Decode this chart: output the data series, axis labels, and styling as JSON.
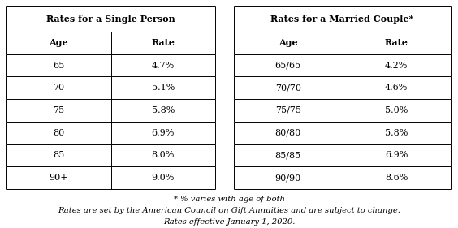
{
  "single_title": "Rates for a Single Person",
  "couple_title": "Rates for a Married Couple*",
  "col_headers": [
    "Age",
    "Rate"
  ],
  "single_data": [
    [
      "65",
      "4.7%"
    ],
    [
      "70",
      "5.1%"
    ],
    [
      "75",
      "5.8%"
    ],
    [
      "80",
      "6.9%"
    ],
    [
      "85",
      "8.0%"
    ],
    [
      "90+",
      "9.0%"
    ]
  ],
  "couple_data": [
    [
      "65/65",
      "4.2%"
    ],
    [
      "70/70",
      "4.6%"
    ],
    [
      "75/75",
      "5.0%"
    ],
    [
      "80/80",
      "5.8%"
    ],
    [
      "85/85",
      "6.9%"
    ],
    [
      "90/90",
      "8.6%"
    ]
  ],
  "footnote1": "* % varies with age of both",
  "footnote2": "Rates are set by the American Council on Gift Annuities and are subject to change.",
  "footnote3": "Rates effective January 1, 2020.",
  "bg_color": "#ffffff",
  "title_fontsize": 8.0,
  "header_fontsize": 8.0,
  "cell_fontsize": 8.0,
  "footnote_fontsize": 7.2,
  "line_color": "#000000",
  "fig_w": 5.64,
  "fig_h": 2.81,
  "dpi": 100
}
